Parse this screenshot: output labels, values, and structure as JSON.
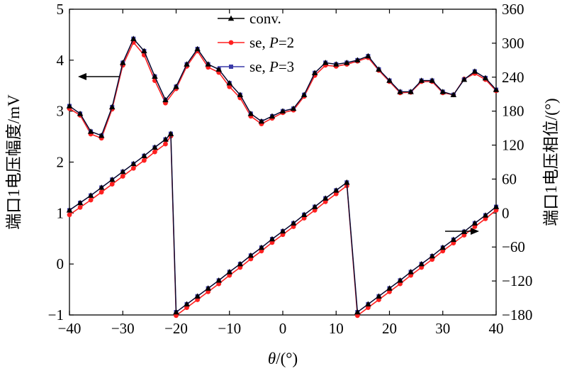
{
  "chart_data": {
    "type": "line",
    "x_axis": {
      "label_symbol": "θ",
      "label_unit": "/(°)",
      "range": [
        -40,
        40
      ],
      "ticks": [
        "−40",
        "−30",
        "−20",
        "−10",
        "0",
        "10",
        "20",
        "30",
        "40"
      ]
    },
    "y_left": {
      "label": "端口1电压幅度/mV",
      "range": [
        -1,
        5
      ],
      "ticks": [
        "−1",
        "0",
        "1",
        "2",
        "3",
        "4",
        "5"
      ]
    },
    "y_right": {
      "label": "端口1电压相位/(°)",
      "range": [
        -180,
        360
      ],
      "ticks": [
        "−180",
        "−120",
        "−60",
        "0",
        "60",
        "120",
        "180",
        "240",
        "300",
        "360"
      ]
    },
    "legend": {
      "position": "top-center",
      "entries": [
        {
          "label": "conv.",
          "marker": "triangle",
          "color": "#000000"
        },
        {
          "label_prefix": "se, ",
          "label_var": "P",
          "label_suffix": "=2",
          "marker": "circle",
          "color": "#ff2020"
        },
        {
          "label_prefix": "se, ",
          "label_var": "P",
          "label_suffix": "=3",
          "marker": "square",
          "color": "#3a3aa8"
        }
      ]
    },
    "x": [
      -40,
      -38,
      -36,
      -34,
      -32,
      -30,
      -28,
      -26,
      -24,
      -22,
      -20,
      -18,
      -16,
      -14,
      -12,
      -10,
      -8,
      -6,
      -4,
      -2,
      0,
      2,
      4,
      6,
      8,
      10,
      12,
      14,
      16,
      18,
      20,
      22,
      24,
      26,
      28,
      30,
      32,
      34,
      36,
      38,
      40
    ],
    "amplitude_series": [
      {
        "name": "conv.",
        "axis": "left",
        "values": [
          3.1,
          2.95,
          2.6,
          2.52,
          3.08,
          3.95,
          4.42,
          4.18,
          3.68,
          3.22,
          3.48,
          3.92,
          4.22,
          3.92,
          3.82,
          3.55,
          3.32,
          2.95,
          2.8,
          2.9,
          3.0,
          3.05,
          3.32,
          3.75,
          3.95,
          3.92,
          3.95,
          4.0,
          4.08,
          3.82,
          3.6,
          3.38,
          3.38,
          3.6,
          3.6,
          3.38,
          3.32,
          3.62,
          3.78,
          3.65,
          3.42
        ]
      },
      {
        "name": "se, P=2",
        "axis": "left",
        "values": [
          3.05,
          2.92,
          2.55,
          2.47,
          3.04,
          3.9,
          4.35,
          4.1,
          3.6,
          3.16,
          3.44,
          3.88,
          4.18,
          3.86,
          3.76,
          3.48,
          3.26,
          2.9,
          2.75,
          2.86,
          2.97,
          3.02,
          3.29,
          3.7,
          3.9,
          3.88,
          3.92,
          3.98,
          4.05,
          3.8,
          3.58,
          3.36,
          3.37,
          3.58,
          3.58,
          3.36,
          3.32,
          3.63,
          3.74,
          3.62,
          3.4
        ]
      },
      {
        "name": "se, P=3",
        "axis": "left",
        "values": [
          3.1,
          2.95,
          2.6,
          2.52,
          3.08,
          3.95,
          4.42,
          4.18,
          3.68,
          3.22,
          3.48,
          3.92,
          4.22,
          3.92,
          3.82,
          3.55,
          3.32,
          2.95,
          2.8,
          2.9,
          3.0,
          3.05,
          3.32,
          3.75,
          3.95,
          3.92,
          3.95,
          4.0,
          4.08,
          3.82,
          3.6,
          3.38,
          3.38,
          3.6,
          3.6,
          3.38,
          3.32,
          3.62,
          3.78,
          3.65,
          3.42
        ]
      }
    ],
    "phase_series": [
      {
        "name": "conv.",
        "axis": "right",
        "x": [
          -40,
          -38,
          -36,
          -34,
          -32,
          -30,
          -28,
          -26,
          -24,
          -22,
          -21,
          -20,
          -18,
          -16,
          -14,
          -12,
          -10,
          -8,
          -6,
          -4,
          -2,
          0,
          2,
          4,
          6,
          8,
          10,
          12,
          12,
          14,
          16,
          18,
          20,
          22,
          24,
          26,
          28,
          30,
          32,
          34,
          36,
          38,
          40
        ],
        "values": [
          5,
          18,
          31,
          45,
          59,
          73,
          87,
          101,
          116,
          130,
          140,
          -175,
          -161,
          -147,
          -133,
          -119,
          -104,
          -90,
          -75,
          -61,
          -46,
          -32,
          -18,
          -3,
          11,
          26,
          40,
          54,
          54,
          -175,
          -161,
          -147,
          -133,
          -119,
          -104,
          -90,
          -76,
          -61,
          -47,
          -33,
          -18,
          -4,
          11
        ]
      },
      {
        "name": "se, P=2",
        "axis": "right",
        "x": [
          -40,
          -38,
          -36,
          -34,
          -32,
          -30,
          -28,
          -26,
          -24,
          -22,
          -21,
          -20,
          -18,
          -16,
          -14,
          -12,
          -10,
          -8,
          -6,
          -4,
          -2,
          0,
          2,
          4,
          6,
          8,
          10,
          12,
          12,
          14,
          16,
          18,
          20,
          22,
          24,
          26,
          28,
          30,
          32,
          34,
          36,
          38,
          40
        ],
        "values": [
          -3,
          10,
          23,
          37,
          51,
          65,
          79,
          93,
          108,
          122,
          136,
          -181,
          -167,
          -153,
          -139,
          -125,
          -110,
          -96,
          -81,
          -67,
          -52,
          -38,
          -24,
          -9,
          5,
          20,
          34,
          48,
          52,
          -181,
          -167,
          -153,
          -139,
          -125,
          -110,
          -96,
          -82,
          -67,
          -53,
          -39,
          -24,
          -10,
          5
        ]
      },
      {
        "name": "se, P=3",
        "axis": "right",
        "x": [
          -40,
          -38,
          -36,
          -34,
          -32,
          -30,
          -28,
          -26,
          -24,
          -22,
          -21,
          -20,
          -18,
          -16,
          -14,
          -12,
          -10,
          -8,
          -6,
          -4,
          -2,
          0,
          2,
          4,
          6,
          8,
          10,
          12,
          12,
          14,
          16,
          18,
          20,
          22,
          24,
          26,
          28,
          30,
          32,
          34,
          36,
          38,
          40
        ],
        "values": [
          5,
          18,
          31,
          45,
          59,
          73,
          87,
          101,
          116,
          130,
          140,
          -175,
          -161,
          -147,
          -133,
          -119,
          -104,
          -90,
          -75,
          -61,
          -46,
          -32,
          -18,
          -3,
          11,
          26,
          40,
          54,
          54,
          -175,
          -161,
          -147,
          -133,
          -119,
          -104,
          -90,
          -76,
          -61,
          -47,
          -33,
          -18,
          -4,
          11
        ]
      }
    ],
    "annotations": [
      {
        "type": "arrow",
        "direction": "left",
        "refers_to": "amplitude (left axis)"
      },
      {
        "type": "arrow",
        "direction": "right",
        "refers_to": "phase (right axis)"
      }
    ]
  }
}
